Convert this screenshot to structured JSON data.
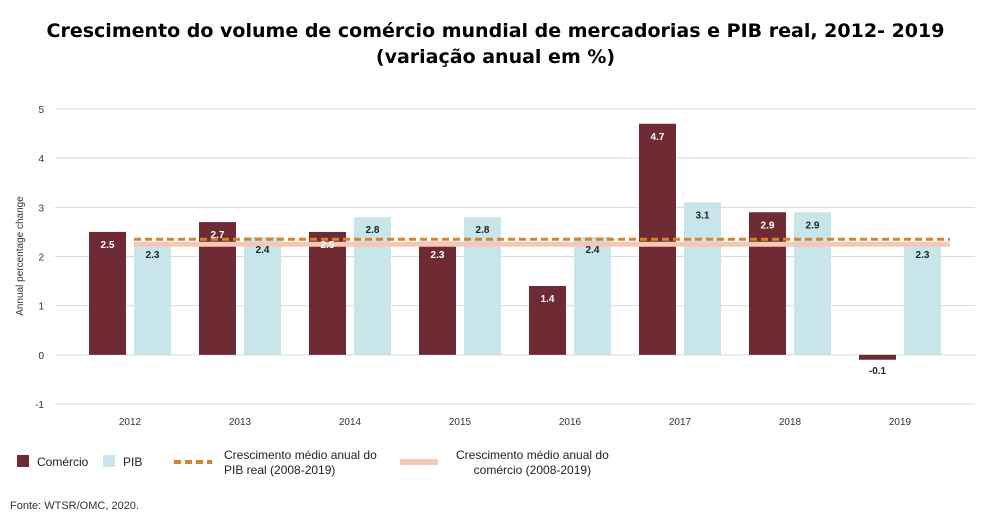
{
  "title_line1": "Crescimento do volume de comércio mundial de mercadorias e PIB real, 2012- 2019",
  "title_line2": "(variação anual em %)",
  "source": "Fonte:  WTSR/OMC, 2020.",
  "colors": {
    "comercio": "#6e2b34",
    "pib": "#c8e6ea",
    "avg_pib": "#d9822b",
    "avg_comercio": "#f5c8b5",
    "grid": "#d9d9d9"
  },
  "legend": {
    "comercio": "Comércio",
    "pib": "PIB",
    "avg_pib_line1": "Crescimento médio anual do",
    "avg_pib_line2": "PIB real (2008-2019)",
    "avg_comercio_line1": "Crescimento médio anual do",
    "avg_comercio_line2": "comércio (2008-2019)"
  },
  "chart_data": {
    "type": "bar",
    "categories": [
      "2012",
      "2013",
      "2014",
      "2015",
      "2016",
      "2017",
      "2018",
      "2019"
    ],
    "series": [
      {
        "name": "Comércio",
        "values": [
          2.5,
          2.7,
          2.5,
          2.3,
          1.4,
          4.7,
          2.9,
          -0.1
        ],
        "labels": [
          "2.5",
          "2.7",
          "2.5",
          "2.3",
          "1.4",
          "4.7",
          "2.9",
          "-0.1"
        ]
      },
      {
        "name": "PIB",
        "values": [
          2.3,
          2.4,
          2.8,
          2.8,
          2.4,
          3.1,
          2.9,
          2.3
        ],
        "labels": [
          "2.3",
          "2.4",
          "2.8",
          "2.8",
          "2.4",
          "3.1",
          "2.9",
          "2.3"
        ]
      }
    ],
    "reference_lines": [
      {
        "name": "Crescimento médio anual do PIB real (2008-2019)",
        "value": 2.35,
        "style": "dashed"
      },
      {
        "name": "Crescimento médio anual do comércio (2008-2019)",
        "value": 2.25,
        "style": "solid"
      }
    ],
    "ylabel": "Annual percentage change",
    "ylim": [
      -1,
      5
    ],
    "yticks": [
      -1,
      0,
      1,
      2,
      3,
      4,
      5
    ],
    "grid": true
  }
}
